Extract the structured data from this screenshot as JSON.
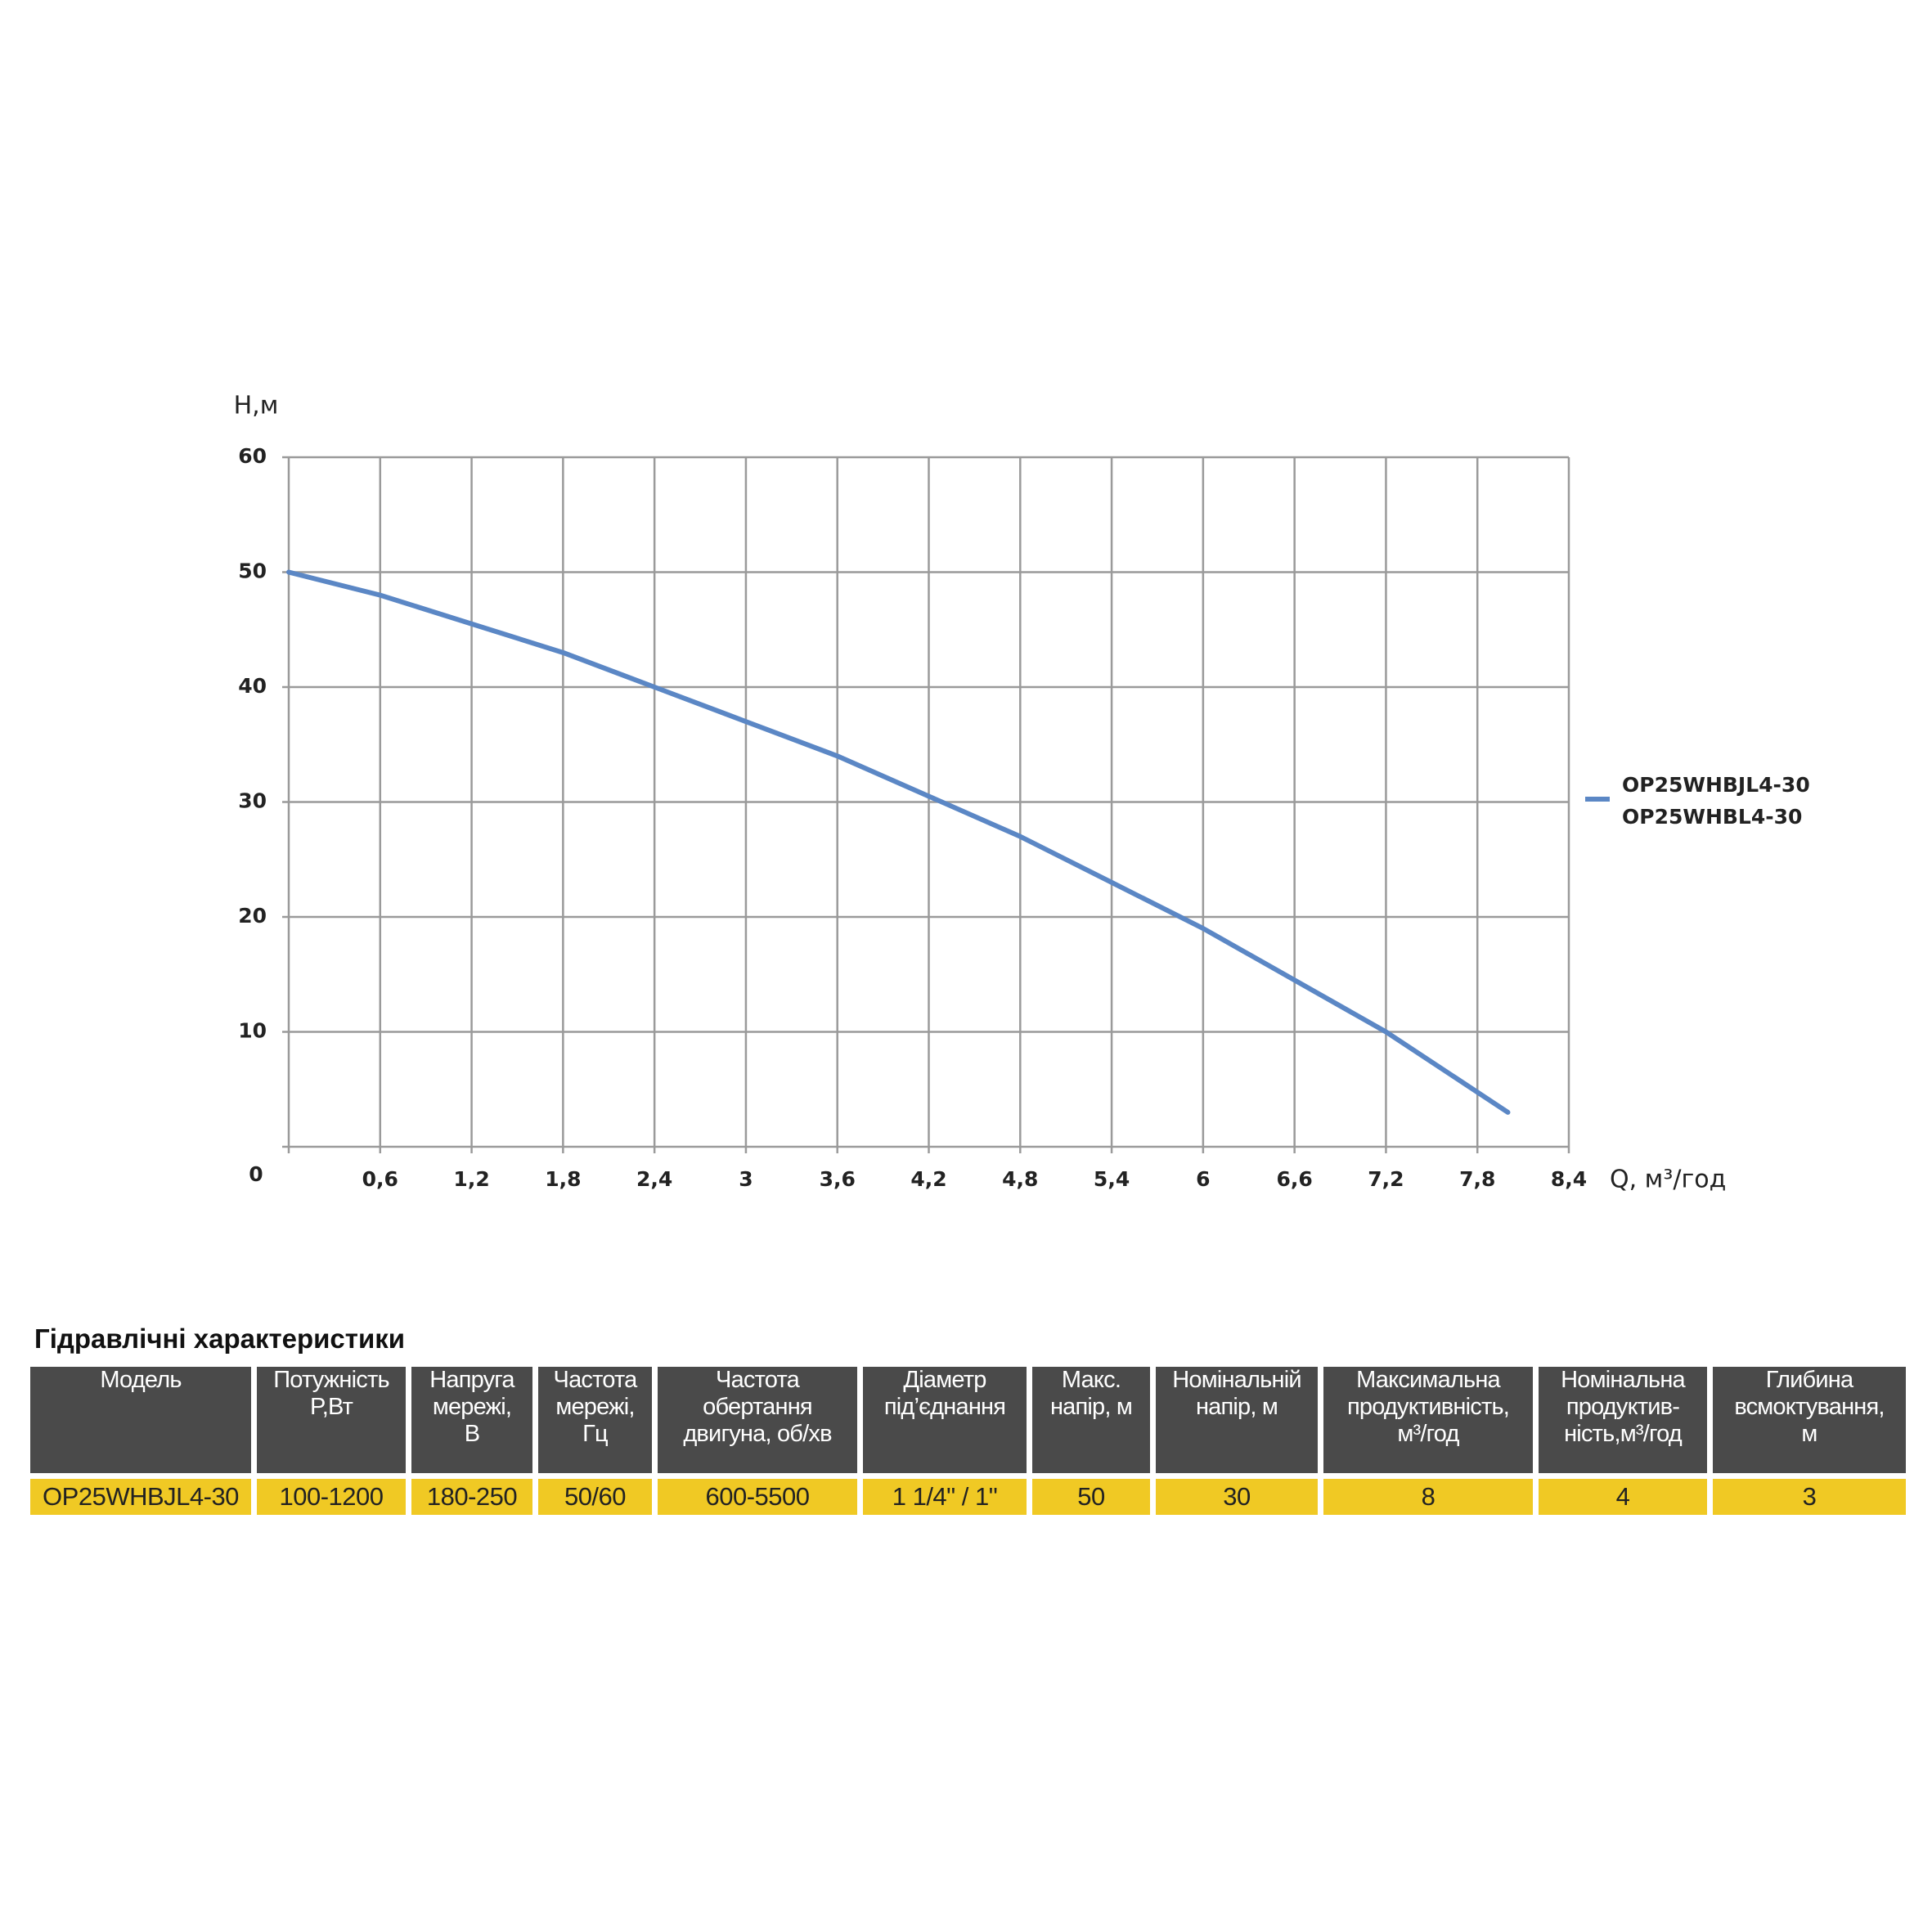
{
  "chart_data": {
    "type": "line",
    "y_label": "H,м",
    "x_label": "Q, м³/год",
    "x": [
      0,
      0.6,
      1.2,
      1.8,
      2.4,
      3.0,
      3.6,
      4.2,
      4.8,
      5.4,
      6.0,
      6.6,
      7.2,
      8.0
    ],
    "series": [
      {
        "name": "OP25WHBJL4-30\nOP25WHBL4-30",
        "color": "#5b87c5",
        "values": [
          50,
          48,
          45.5,
          43,
          40,
          37,
          34,
          30.5,
          27,
          23,
          19,
          14.5,
          10,
          3
        ]
      }
    ],
    "xlim": [
      0,
      8.4
    ],
    "xticks": [
      0,
      {
        "value": 0.6,
        "label": "0,6"
      },
      {
        "value": 1.2,
        "label": "1,2"
      },
      {
        "value": 1.8,
        "label": "1,8"
      },
      {
        "value": 2.4,
        "label": "2,4"
      },
      3,
      {
        "value": 3.6,
        "label": "3,6"
      },
      {
        "value": 4.2,
        "label": "4,2"
      },
      {
        "value": 4.8,
        "label": "4,8"
      },
      {
        "value": 5.4,
        "label": "5,4"
      },
      6,
      {
        "value": 6.6,
        "label": "6,6"
      },
      {
        "value": 7.2,
        "label": "7,2"
      },
      {
        "value": 7.8,
        "label": "7,8"
      },
      {
        "value": 8.4,
        "label": "8,4"
      }
    ],
    "ylim": [
      0,
      60
    ],
    "yticks": [
      10,
      20,
      30,
      40,
      50,
      60
    ],
    "grid": true
  },
  "table": {
    "title": "Гідравлічні характеристики",
    "header": [
      "Модель",
      "Потужність\nP,Вт",
      "Напруга\nмережі,\nВ",
      "Частота\nмережі,\nГц",
      "Частота\nобертання\nдвигуна, об/хв",
      "Діаметр\nпід’єднання",
      "Макс.\nнапір, м",
      "Номінальній\nнапір, м",
      "Максимальна\nпродуктивність,\nм³/год",
      "Номінальна\nпродуктив-\nність,м³/год",
      "Глибина\nвсмоктування,\nм"
    ],
    "rows": [
      [
        "OP25WHBJL4-30",
        "100-1200",
        "180-250",
        "50/60",
        "600-5500",
        "1 1/4\" / 1\"",
        "50",
        "30",
        "8",
        "4",
        "3"
      ]
    ]
  }
}
